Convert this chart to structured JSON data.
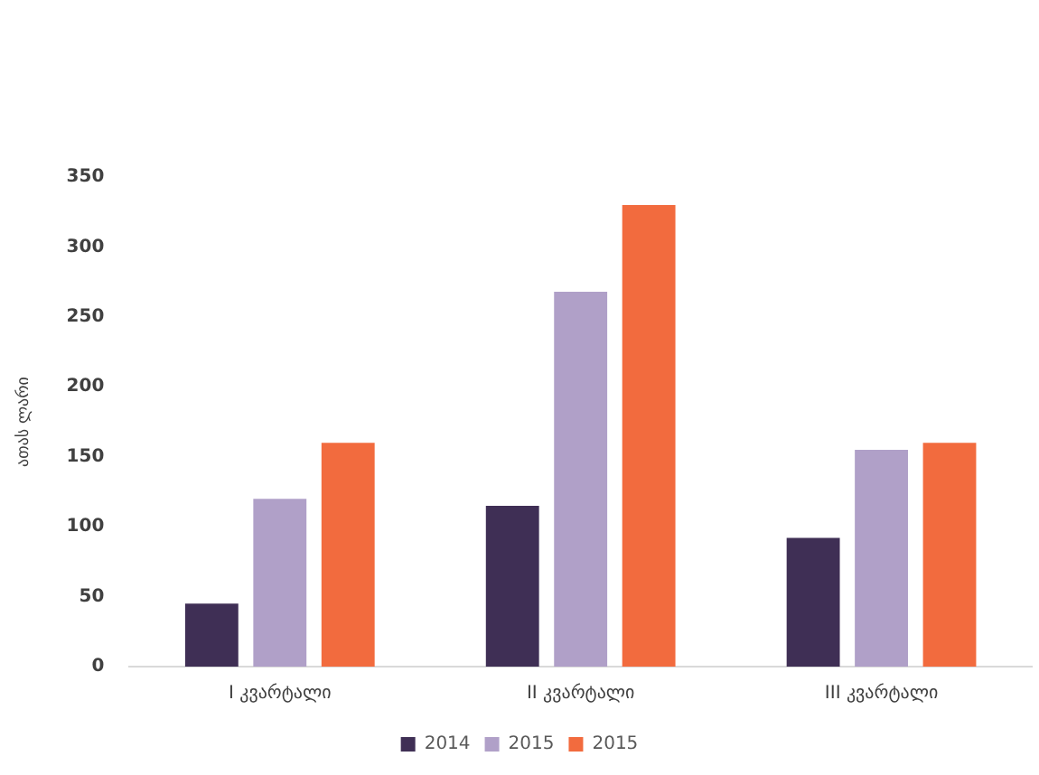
{
  "chart_data": {
    "type": "bar",
    "ylabel": "ათას ლარი",
    "categories": [
      "I კვარტალი",
      "II კვარტალი",
      "III კვარტალი"
    ],
    "series": [
      {
        "name": "2014",
        "color": "#3f2f55",
        "values": [
          45,
          115,
          92
        ]
      },
      {
        "name": "2015",
        "color": "#b0a0c8",
        "values": [
          120,
          268,
          155
        ]
      },
      {
        "name": "2015",
        "color": "#f26b3e",
        "values": [
          160,
          330,
          160
        ]
      }
    ],
    "ylim": [
      0,
      350
    ],
    "yticks": [
      0,
      50,
      100,
      150,
      200,
      250,
      300,
      350
    ],
    "grid": false,
    "legend": "bottom"
  }
}
